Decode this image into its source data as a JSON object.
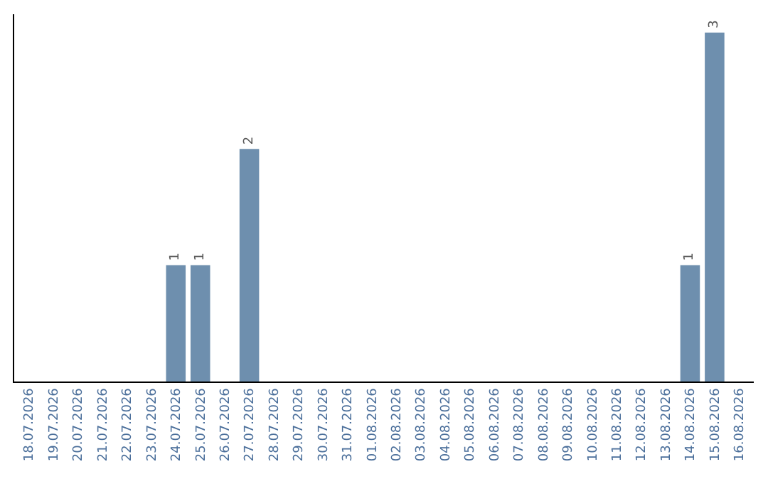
{
  "chart_data": {
    "type": "bar",
    "categories": [
      "18.07.2026",
      "19.07.2026",
      "20.07.2026",
      "21.07.2026",
      "22.07.2026",
      "23.07.2026",
      "24.07.2026",
      "25.07.2026",
      "26.07.2026",
      "27.07.2026",
      "28.07.2026",
      "29.07.2026",
      "30.07.2026",
      "31.07.2026",
      "01.08.2026",
      "02.08.2026",
      "03.08.2026",
      "04.08.2026",
      "05.08.2026",
      "06.08.2026",
      "07.08.2026",
      "08.08.2026",
      "09.08.2026",
      "10.08.2026",
      "11.08.2026",
      "12.08.2026",
      "13.08.2026",
      "14.08.2026",
      "15.08.2026",
      "16.08.2026"
    ],
    "values": [
      0,
      0,
      0,
      0,
      0,
      0,
      1,
      1,
      0,
      2,
      0,
      0,
      0,
      0,
      0,
      0,
      0,
      0,
      0,
      0,
      0,
      0,
      0,
      0,
      0,
      0,
      0,
      1,
      3,
      0
    ],
    "value_labels": [
      null,
      null,
      null,
      null,
      null,
      null,
      "1",
      "1",
      null,
      "2",
      null,
      null,
      null,
      null,
      null,
      null,
      null,
      null,
      null,
      null,
      null,
      null,
      null,
      null,
      null,
      null,
      null,
      "1",
      "3",
      null
    ],
    "color": "#6e8fae",
    "grid": false,
    "legend": false,
    "tick_labels": "x"
  }
}
